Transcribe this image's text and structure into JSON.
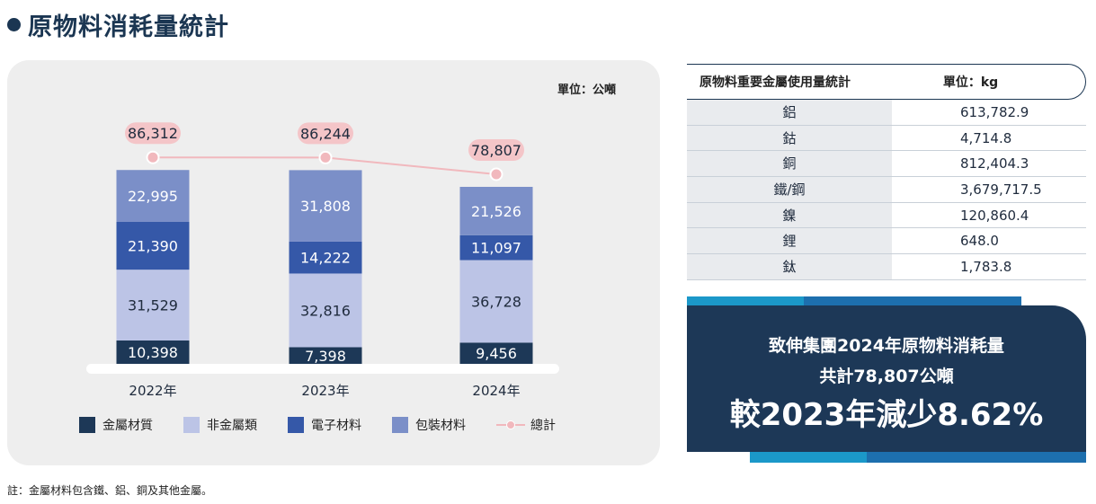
{
  "page_title": "原物料消耗量統計",
  "chart_data": {
    "type": "bar",
    "stacked": true,
    "unit_label": "單位：公噸",
    "categories": [
      "2022年",
      "2023年",
      "2024年"
    ],
    "series": [
      {
        "name": "金屬材質",
        "color": "#1d3857",
        "values": [
          10398,
          7398,
          9456
        ],
        "labels": [
          "10,398",
          "7,398",
          "9,456"
        ]
      },
      {
        "name": "非金屬類",
        "color": "#bcc4e6",
        "values": [
          31529,
          32816,
          36728
        ],
        "labels": [
          "31,529",
          "32,816",
          "36,728"
        ]
      },
      {
        "name": "電子材料",
        "color": "#3558a8",
        "values": [
          21390,
          14222,
          11097
        ],
        "labels": [
          "21,390",
          "14,222",
          "11,097"
        ]
      },
      {
        "name": "包裝材料",
        "color": "#7b8fc8",
        "values": [
          22995,
          31808,
          21526
        ],
        "labels": [
          "22,995",
          "31,808",
          "21,526"
        ]
      }
    ],
    "total_series": {
      "name": "總計",
      "color": "#f1b8bd",
      "values": [
        86312,
        86244,
        78807
      ],
      "labels": [
        "86,312",
        "86,244",
        "78,807"
      ]
    },
    "legend_position": "bottom",
    "grid": false
  },
  "metal_table": {
    "header_title": "原物料重要金屬使用量統計",
    "header_unit": "單位：kg",
    "rows": [
      {
        "name": "鋁",
        "value": "613,782.9"
      },
      {
        "name": "鈷",
        "value": "4,714.8"
      },
      {
        "name": "銅",
        "value": "812,404.3"
      },
      {
        "name": "鐵/鋼",
        "value": "3,679,717.5"
      },
      {
        "name": "鎳",
        "value": "120,860.4"
      },
      {
        "name": "鋰",
        "value": "648.0"
      },
      {
        "name": "鈦",
        "value": "1,783.8"
      }
    ]
  },
  "summary": {
    "line1": "致伸集團2024年原物料消耗量",
    "line2": "共計78,807公噸",
    "line3": "較2023年減少8.62%"
  },
  "footnote": "註：金屬材料包含鐵、鋁、銅及其他金屬。"
}
